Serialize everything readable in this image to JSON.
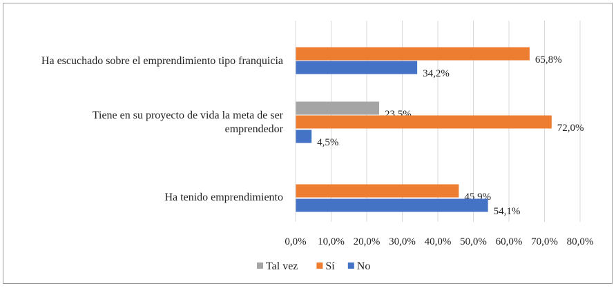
{
  "chart_data": {
    "type": "bar",
    "orientation": "horizontal",
    "title": "",
    "xlabel": "",
    "ylabel": "",
    "xlim": [
      0,
      80
    ],
    "grid": true,
    "legend_position": "bottom",
    "x_ticks": [
      "0,0%",
      "10,0%",
      "20,0%",
      "30,0%",
      "40,0%",
      "50,0%",
      "60,0%",
      "70,0%",
      "80,0%"
    ],
    "categories": [
      {
        "label_lines": [
          "Ha escuchado sobre el emprendimiento tipo franquicia"
        ]
      },
      {
        "label_lines": [
          "Tiene en su proyecto de vida la meta de ser",
          "emprendedor"
        ]
      },
      {
        "label_lines": [
          "Ha tenido emprendimiento"
        ]
      }
    ],
    "series": [
      {
        "name": "Tal vez",
        "color": "#a5a5a5",
        "values": [
          null,
          23.5,
          null
        ],
        "labels": [
          null,
          "23,5%",
          null
        ]
      },
      {
        "name": "Sí",
        "color": "#ed7d31",
        "values": [
          65.8,
          72.0,
          45.9
        ],
        "labels": [
          "65,8%",
          "72,0%",
          "45,9%"
        ]
      },
      {
        "name": "No",
        "color": "#4472c4",
        "values": [
          34.2,
          4.5,
          54.1
        ],
        "labels": [
          "34,2%",
          "4,5%",
          "54,1%"
        ]
      }
    ]
  }
}
